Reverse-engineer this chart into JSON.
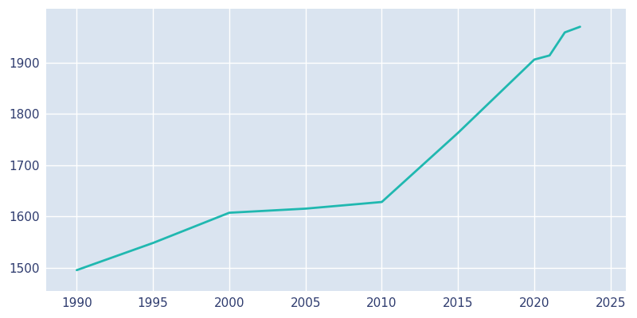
{
  "years": [
    1990,
    1995,
    2000,
    2005,
    2010,
    2015,
    2020,
    2021,
    2022,
    2023
  ],
  "population": [
    1495,
    1548,
    1607,
    1615,
    1628,
    1763,
    1906,
    1914,
    1959,
    1970
  ],
  "line_color": "#20B8B0",
  "bg_color": "#FFFFFF",
  "axes_bg_color": "#DAE4F0",
  "grid_color": "#FFFFFF",
  "tick_color": "#2E3B6E",
  "xlim": [
    1988,
    2026
  ],
  "ylim": [
    1455,
    2005
  ],
  "xticks": [
    1990,
    1995,
    2000,
    2005,
    2010,
    2015,
    2020,
    2025
  ],
  "yticks": [
    1500,
    1600,
    1700,
    1800,
    1900
  ],
  "linewidth": 2.0,
  "figsize": [
    8.0,
    4.0
  ],
  "dpi": 100
}
